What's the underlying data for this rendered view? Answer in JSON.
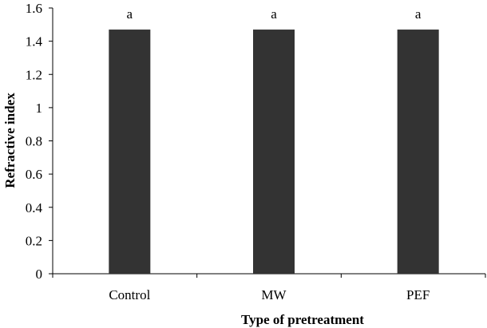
{
  "chart_data": {
    "type": "bar",
    "title": "",
    "xlabel": "Type of pretreatment",
    "ylabel": "Refractive index",
    "categories": [
      "Control",
      "MW",
      "PEF"
    ],
    "values": [
      1.47,
      1.47,
      1.47
    ],
    "bar_labels": [
      "a",
      "a",
      "a"
    ],
    "ylim": [
      0,
      1.6
    ],
    "yticks": [
      0,
      0.2,
      0.4,
      0.6,
      0.8,
      1,
      1.2,
      1.4,
      1.6
    ],
    "ytick_labels": [
      "0",
      "0.2",
      "0.4",
      "0.6",
      "0.8",
      "1",
      "1.2",
      "1.4",
      "1.6"
    ],
    "grid": false,
    "legend": "none",
    "bar_color": "#333333"
  }
}
